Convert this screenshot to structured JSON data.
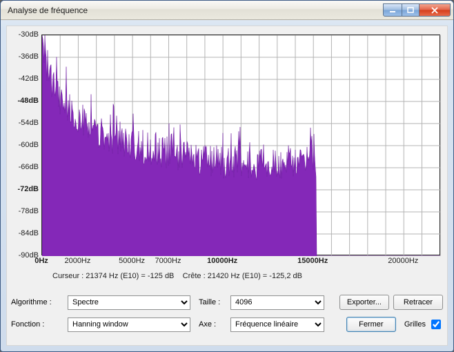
{
  "window": {
    "title": "Analyse de fréquence"
  },
  "chart": {
    "type": "spectrum-area",
    "background_color": "#ffffff",
    "grid_color": "#b3b3b3",
    "border_color": "#222222",
    "fill_color": "#8428b8",
    "stroke_color": "#6d1ba0",
    "xlim": [
      0,
      22050
    ],
    "ylim": [
      -90,
      -30
    ],
    "ytick_step": 6,
    "yticks": [
      {
        "v": -30,
        "label": "-30dB",
        "bold": false
      },
      {
        "v": -36,
        "label": "-36dB",
        "bold": false
      },
      {
        "v": -42,
        "label": "-42dB",
        "bold": false
      },
      {
        "v": -48,
        "label": "-48dB",
        "bold": true
      },
      {
        "v": -54,
        "label": "-54dB",
        "bold": false
      },
      {
        "v": -60,
        "label": "-60dB",
        "bold": false
      },
      {
        "v": -66,
        "label": "-66dB",
        "bold": false
      },
      {
        "v": -72,
        "label": "-72dB",
        "bold": true
      },
      {
        "v": -78,
        "label": "-78dB",
        "bold": false
      },
      {
        "v": -84,
        "label": "-84dB",
        "bold": false
      },
      {
        "v": -90,
        "label": "-90dB",
        "bold": false
      }
    ],
    "xgrid": [
      0,
      1000,
      2000,
      3000,
      4000,
      5000,
      6000,
      7000,
      8000,
      9000,
      10000,
      11000,
      12000,
      13000,
      14000,
      15000,
      16000,
      17000,
      18000,
      19000,
      20000,
      21000,
      22050
    ],
    "xticks": [
      {
        "v": 0,
        "label": "0Hz",
        "bold": true
      },
      {
        "v": 2000,
        "label": "2000Hz",
        "bold": false
      },
      {
        "v": 5000,
        "label": "5000Hz",
        "bold": false
      },
      {
        "v": 7000,
        "label": "7000Hz",
        "bold": false
      },
      {
        "v": 10000,
        "label": "10000Hz",
        "bold": true
      },
      {
        "v": 15000,
        "label": "15000Hz",
        "bold": true
      },
      {
        "v": 20000,
        "label": "20000Hz",
        "bold": false
      }
    ],
    "seed": 128472,
    "envelope": [
      {
        "hz": 0,
        "db": -31
      },
      {
        "hz": 300,
        "db": -40
      },
      {
        "hz": 1000,
        "db": -48
      },
      {
        "hz": 2500,
        "db": -55
      },
      {
        "hz": 5000,
        "db": -60
      },
      {
        "hz": 8000,
        "db": -63
      },
      {
        "hz": 11000,
        "db": -65
      },
      {
        "hz": 14000,
        "db": -65
      },
      {
        "hz": 15000,
        "db": -64
      },
      {
        "hz": 15200,
        "db": -66
      }
    ],
    "cutoff_hz": 15200,
    "noise_db": 4.5
  },
  "status": {
    "cursor_label": "Curseur : 21374 Hz (E10) = -125 dB",
    "crete_label": "Crête : 21420 Hz (E10) = -125,2 dB"
  },
  "controls": {
    "algo_label": "Algorithme :",
    "algo_value": "Spectre",
    "taille_label": "Taille :",
    "taille_value": "4096",
    "fonction_label": "Fonction :",
    "fonction_value": "Hanning window",
    "axe_label": "Axe :",
    "axe_value": "Fréquence linéaire",
    "exporter": "Exporter...",
    "retracer": "Retracer",
    "fermer": "Fermer",
    "grilles_label": "Grilles",
    "grilles_checked": true
  }
}
